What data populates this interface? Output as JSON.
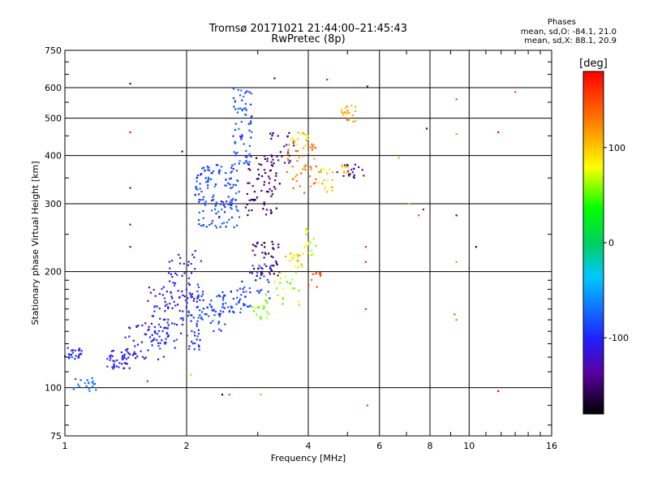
{
  "chart_data": {
    "type": "scatter",
    "title_line1": "Tromsø 20171021 21:44:00–21:45:43",
    "title_line2": "RwPretec (8p)",
    "xlabel": "Frequency [MHz]",
    "ylabel": "Stationary phase Virtual Height [km]",
    "xscale": "log",
    "yscale": "log",
    "xlim": [
      1,
      16
    ],
    "ylim": [
      75,
      750
    ],
    "xticks": [
      1,
      2,
      4,
      6,
      8,
      10,
      16
    ],
    "yticks": [
      75,
      100,
      200,
      300,
      400,
      500,
      600,
      750
    ],
    "grid": true,
    "phase_stats": {
      "heading": "Phases",
      "line1": "mean, sd,O: -84.1, 21.0",
      "line2": "mean, sd,X:  88.1, 20.9"
    },
    "colorbar": {
      "label": "[deg]",
      "ticks": [
        100,
        0,
        -100
      ],
      "range": [
        -180,
        180
      ],
      "colormap": [
        "#000000",
        "#5a00a0",
        "#2020ff",
        "#00c8ff",
        "#00d060",
        "#00ff00",
        "#ffff00",
        "#ff8000",
        "#ff0000"
      ]
    },
    "clusters": [
      {
        "f": [
          1.0,
          1.1
        ],
        "h": [
          118,
          128
        ],
        "phase": -100,
        "n": 25
      },
      {
        "f": [
          1.05,
          1.2
        ],
        "h": [
          97,
          106
        ],
        "phase": -70,
        "n": 20
      },
      {
        "f": [
          1.25,
          1.45
        ],
        "h": [
          112,
          125
        ],
        "phase": -110,
        "n": 35
      },
      {
        "f": [
          1.4,
          1.8
        ],
        "h": [
          118,
          150
        ],
        "phase": -105,
        "n": 60
      },
      {
        "f": [
          1.6,
          2.2
        ],
        "h": [
          125,
          185
        ],
        "phase": -100,
        "n": 110
      },
      {
        "f": [
          1.8,
          2.2
        ],
        "h": [
          160,
          230
        ],
        "phase": -110,
        "n": 45
      },
      {
        "f": [
          2.1,
          2.5
        ],
        "h": [
          140,
          175
        ],
        "phase": -90,
        "n": 45
      },
      {
        "f": [
          2.1,
          2.7
        ],
        "h": [
          260,
          380
        ],
        "phase": -85,
        "n": 140
      },
      {
        "f": [
          2.4,
          2.9
        ],
        "h": [
          155,
          180
        ],
        "phase": -85,
        "n": 40
      },
      {
        "f": [
          2.6,
          2.9
        ],
        "h": [
          380,
          600
        ],
        "phase": -80,
        "n": 70
      },
      {
        "f": [
          2.7,
          3.3
        ],
        "h": [
          170,
          210
        ],
        "phase": -90,
        "n": 30
      },
      {
        "f": [
          2.9,
          3.2
        ],
        "h": [
          150,
          175
        ],
        "phase": 60,
        "n": 20
      },
      {
        "f": [
          2.8,
          3.4
        ],
        "h": [
          280,
          400
        ],
        "phase": -150,
        "n": 70
      },
      {
        "f": [
          2.9,
          3.4
        ],
        "h": [
          195,
          240
        ],
        "phase": -150,
        "n": 45
      },
      {
        "f": [
          3.2,
          3.7
        ],
        "h": [
          380,
          460
        ],
        "phase": -140,
        "n": 25
      },
      {
        "f": [
          3.3,
          3.8
        ],
        "h": [
          160,
          200
        ],
        "phase": 60,
        "n": 20
      },
      {
        "f": [
          3.5,
          4.2
        ],
        "h": [
          320,
          440
        ],
        "phase": 130,
        "n": 50
      },
      {
        "f": [
          3.6,
          4.0
        ],
        "h": [
          420,
          460
        ],
        "phase": 90,
        "n": 15
      },
      {
        "f": [
          3.5,
          3.9
        ],
        "h": [
          205,
          225
        ],
        "phase": 95,
        "n": 20
      },
      {
        "f": [
          3.9,
          4.2
        ],
        "h": [
          220,
          260
        ],
        "phase": 70,
        "n": 15
      },
      {
        "f": [
          4.0,
          4.3
        ],
        "h": [
          180,
          200
        ],
        "phase": 150,
        "n": 10
      },
      {
        "f": [
          4.2,
          4.6
        ],
        "h": [
          320,
          370
        ],
        "phase": 100,
        "n": 20
      },
      {
        "f": [
          4.7,
          5.5
        ],
        "h": [
          350,
          380
        ],
        "phase": -130,
        "n": 20
      },
      {
        "f": [
          4.8,
          5.3
        ],
        "h": [
          490,
          540
        ],
        "phase": 110,
        "n": 20
      },
      {
        "f": [
          4.8,
          5.1
        ],
        "h": [
          360,
          380
        ],
        "phase": 100,
        "n": 10
      }
    ],
    "points": [
      {
        "f": 1.45,
        "h": 615,
        "phase": -150
      },
      {
        "f": 1.45,
        "h": 460,
        "phase": 180
      },
      {
        "f": 1.45,
        "h": 330,
        "phase": -120
      },
      {
        "f": 1.45,
        "h": 265,
        "phase": -110
      },
      {
        "f": 1.45,
        "h": 232,
        "phase": -130
      },
      {
        "f": 1.6,
        "h": 104,
        "phase": 170
      },
      {
        "f": 1.95,
        "h": 410,
        "phase": -150
      },
      {
        "f": 2.05,
        "h": 108,
        "phase": 60
      },
      {
        "f": 2.45,
        "h": 96,
        "phase": -160
      },
      {
        "f": 2.55,
        "h": 96,
        "phase": 150
      },
      {
        "f": 3.05,
        "h": 96,
        "phase": 110
      },
      {
        "f": 3.3,
        "h": 635,
        "phase": -150
      },
      {
        "f": 4.45,
        "h": 630,
        "phase": 170
      },
      {
        "f": 5.6,
        "h": 605,
        "phase": -110
      },
      {
        "f": 5.55,
        "h": 232,
        "phase": 160
      },
      {
        "f": 5.55,
        "h": 212,
        "phase": 170
      },
      {
        "f": 5.55,
        "h": 160,
        "phase": 160
      },
      {
        "f": 5.6,
        "h": 90,
        "phase": -60
      },
      {
        "f": 6.7,
        "h": 395,
        "phase": 110
      },
      {
        "f": 7.1,
        "h": 300,
        "phase": 110
      },
      {
        "f": 7.5,
        "h": 280,
        "phase": 150
      },
      {
        "f": 7.7,
        "h": 290,
        "phase": -110
      },
      {
        "f": 7.85,
        "h": 470,
        "phase": -150
      },
      {
        "f": 9.3,
        "h": 560,
        "phase": 150
      },
      {
        "f": 9.3,
        "h": 455,
        "phase": 120
      },
      {
        "f": 9.3,
        "h": 280,
        "phase": -150
      },
      {
        "f": 9.3,
        "h": 212,
        "phase": 120
      },
      {
        "f": 9.2,
        "h": 155,
        "phase": 150
      },
      {
        "f": 9.3,
        "h": 150,
        "phase": 130
      },
      {
        "f": 10.4,
        "h": 232,
        "phase": -160
      },
      {
        "f": 11.8,
        "h": 460,
        "phase": 180
      },
      {
        "f": 11.8,
        "h": 98,
        "phase": 180
      },
      {
        "f": 13.0,
        "h": 585,
        "phase": 150
      }
    ]
  }
}
